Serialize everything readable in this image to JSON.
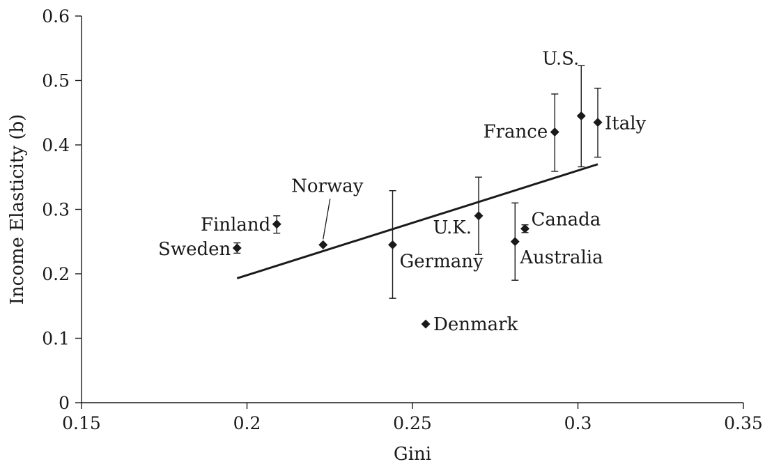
{
  "chart_data": {
    "type": "scatter",
    "title": "",
    "xlabel": "Gini",
    "ylabel": "Income Elasticity (b)",
    "xlim": [
      0.15,
      0.35
    ],
    "ylim": [
      0,
      0.6
    ],
    "x_ticks": [
      "0.15",
      "0.2",
      "0.25",
      "0.3",
      "0.35"
    ],
    "y_ticks": [
      "0",
      "0.1",
      "0.2",
      "0.3",
      "0.4",
      "0.5",
      "0.6"
    ],
    "grid": false,
    "legend": "none",
    "points": [
      {
        "label": "Sweden",
        "x": 0.197,
        "y": 0.24,
        "err_low": 0.232,
        "err_high": 0.248
      },
      {
        "label": "Finland",
        "x": 0.209,
        "y": 0.277,
        "err_low": 0.263,
        "err_high": 0.29
      },
      {
        "label": "Norway",
        "x": 0.223,
        "y": 0.245,
        "err_low": null,
        "err_high": null
      },
      {
        "label": "Germany",
        "x": 0.244,
        "y": 0.245,
        "err_low": 0.162,
        "err_high": 0.329
      },
      {
        "label": "Denmark",
        "x": 0.254,
        "y": 0.122,
        "err_low": null,
        "err_high": null
      },
      {
        "label": "U.K.",
        "x": 0.27,
        "y": 0.29,
        "err_low": 0.23,
        "err_high": 0.35
      },
      {
        "label": "Australia",
        "x": 0.281,
        "y": 0.25,
        "err_low": 0.19,
        "err_high": 0.31
      },
      {
        "label": "Canada",
        "x": 0.284,
        "y": 0.27,
        "err_low": 0.264,
        "err_high": 0.276
      },
      {
        "label": "France",
        "x": 0.293,
        "y": 0.42,
        "err_low": 0.359,
        "err_high": 0.479
      },
      {
        "label": "U.S.",
        "x": 0.301,
        "y": 0.445,
        "err_low": 0.366,
        "err_high": 0.523
      },
      {
        "label": "Italy",
        "x": 0.306,
        "y": 0.435,
        "err_low": 0.381,
        "err_high": 0.488
      }
    ],
    "trendline": {
      "x": [
        0.197,
        0.306
      ],
      "y": [
        0.193,
        0.37
      ]
    }
  }
}
